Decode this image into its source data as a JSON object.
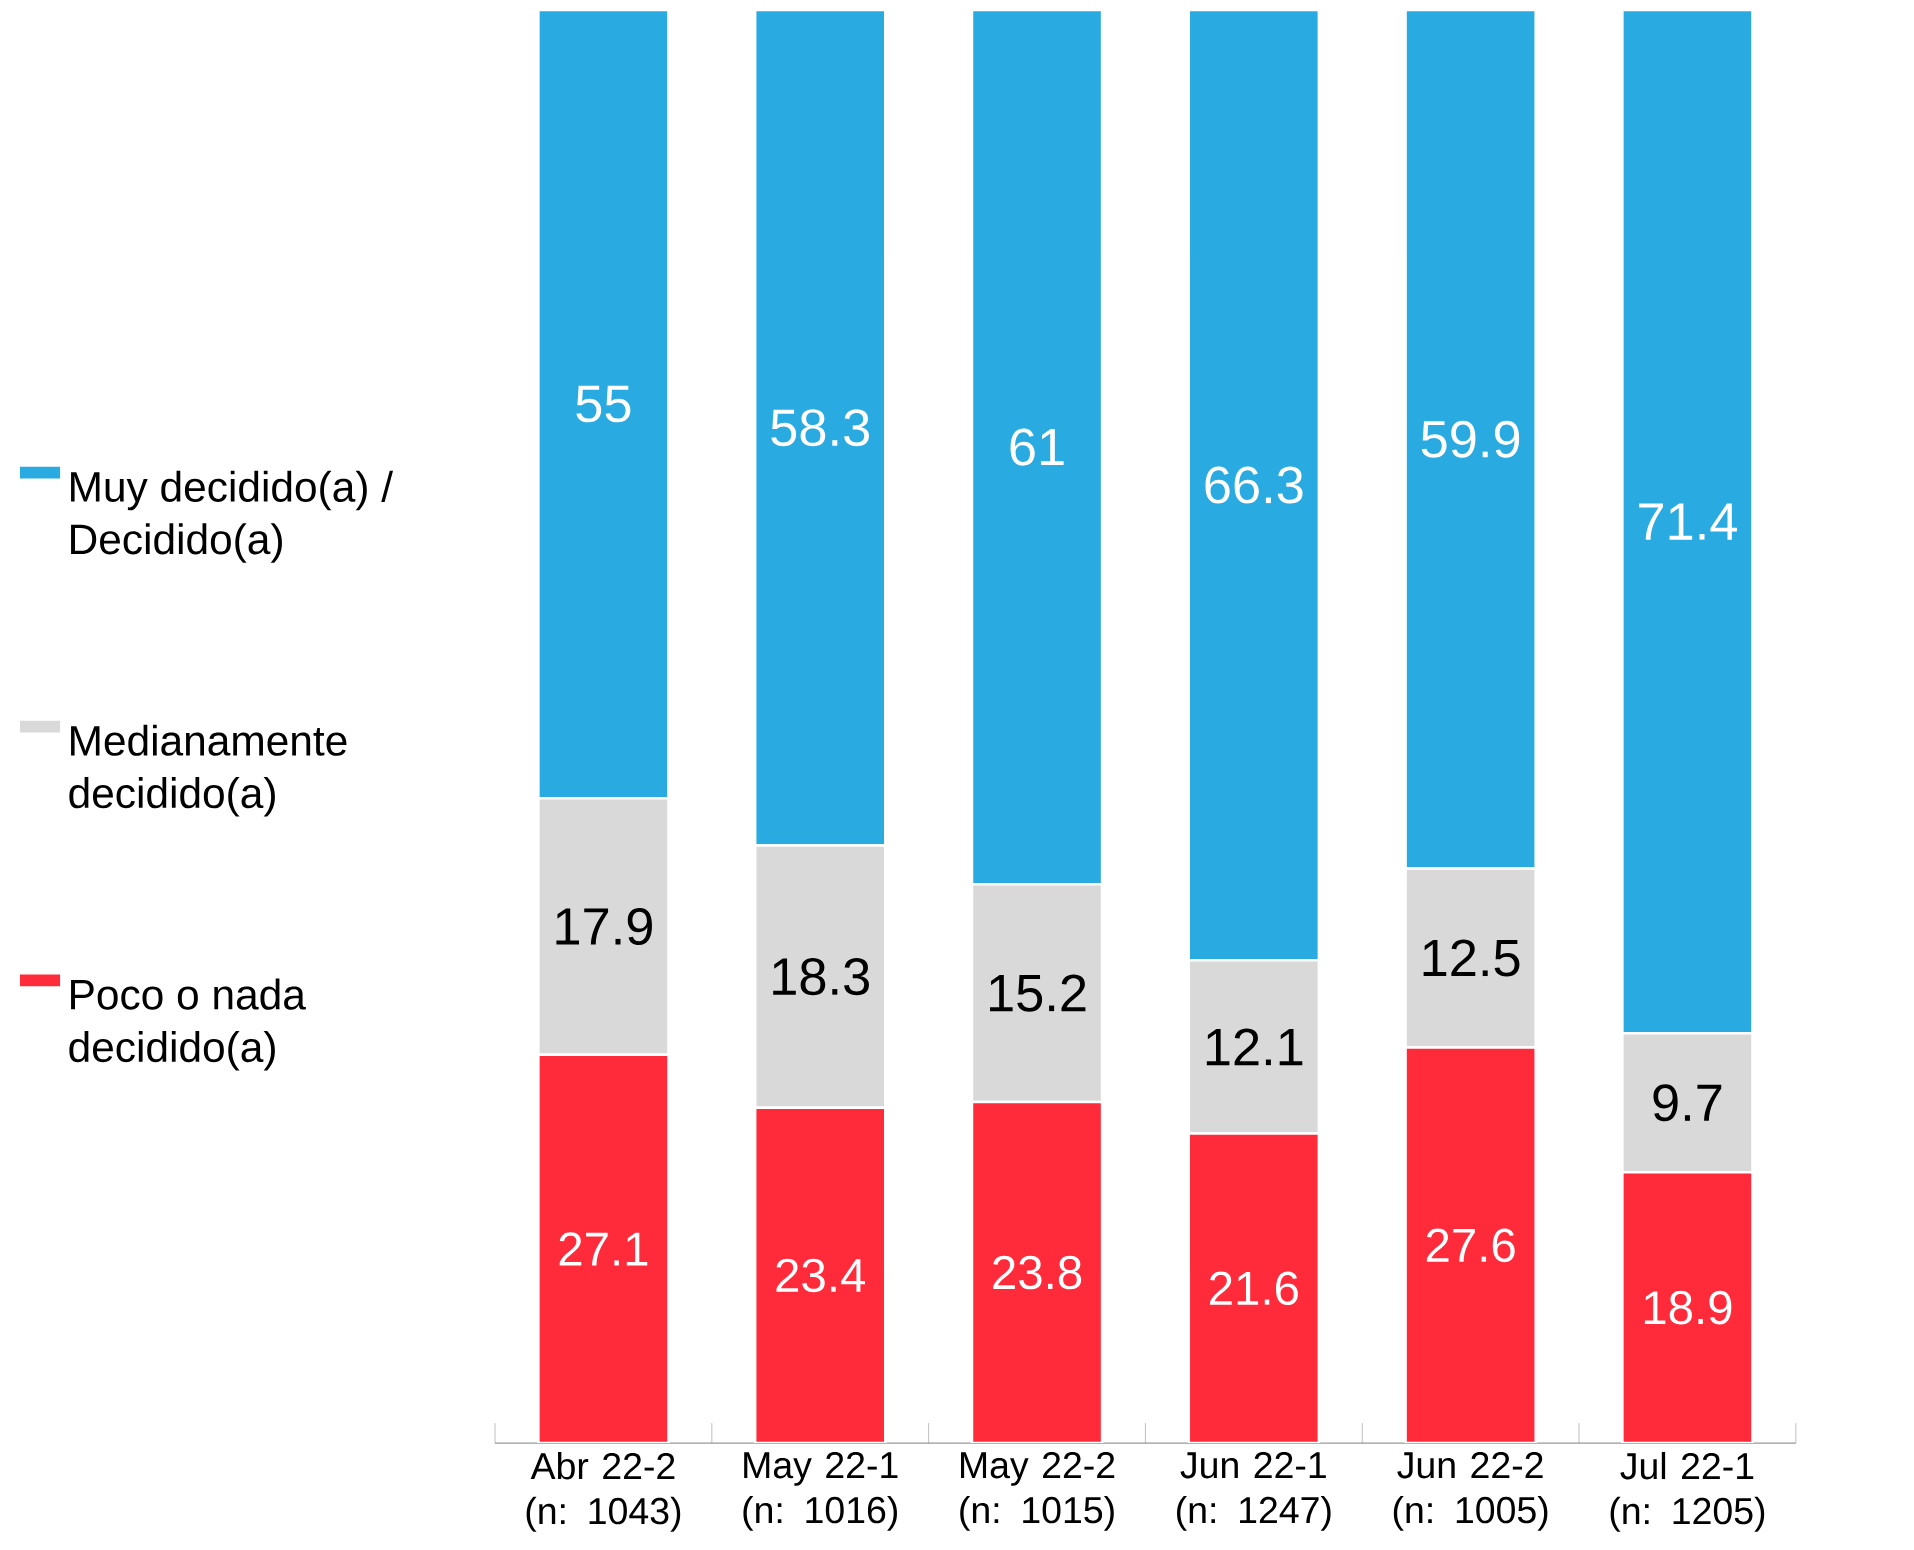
{
  "chart_data": {
    "type": "bar",
    "stacked": true,
    "data_labels": true,
    "legend": "left",
    "categories": [
      "Abr 22-2 (n: 1043)",
      "May 22-1 (n: 1016)",
      "May 22-2 (n: 1015)",
      "Jun 22-1 (n: 1247)",
      "Jun 22-2 (n: 1005)",
      "Jul 22-1 (n: 1205)"
    ],
    "series": [
      {
        "name": "Poco o nada decidido(a)",
        "color": "#ff2a3a",
        "values": [
          27.1,
          23.4,
          23.8,
          21.6,
          27.6,
          18.9
        ]
      },
      {
        "name": "Medianamente decidido(a)",
        "color": "#d9d9d9",
        "values": [
          17.9,
          18.3,
          15.2,
          12.1,
          12.5,
          9.7
        ]
      },
      {
        "name": "Muy decidido(a) / Decidido(a)",
        "color": "#29abe2",
        "values": [
          55,
          58.3,
          61,
          66.3,
          59.9,
          71.4
        ]
      }
    ]
  }
}
